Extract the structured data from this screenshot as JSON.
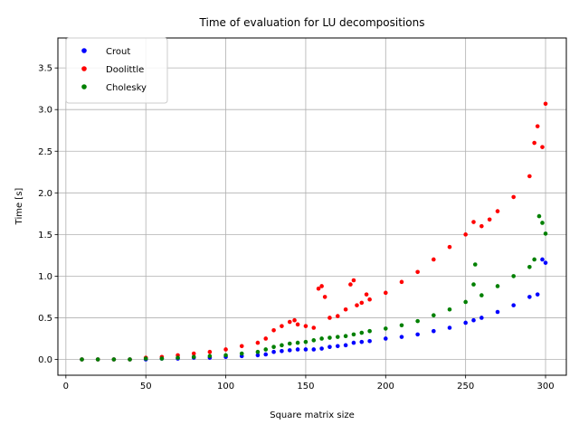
{
  "chart_data": {
    "type": "scatter",
    "title": "Time of evaluation for LU decompositions",
    "xlabel": "Square matrix size",
    "ylabel": "Time [s]",
    "xlim": [
      -5,
      313
    ],
    "ylim": [
      -0.19,
      3.86
    ],
    "xticks": [
      0,
      50,
      100,
      150,
      200,
      250,
      300
    ],
    "yticks": [
      0.0,
      0.5,
      1.0,
      1.5,
      2.0,
      2.5,
      3.0,
      3.5
    ],
    "grid": true,
    "legend_position": "top-left",
    "series": [
      {
        "name": "Crout",
        "color": "#0000ff",
        "x": [
          10,
          20,
          30,
          40,
          50,
          60,
          70,
          80,
          90,
          100,
          110,
          120,
          125,
          130,
          135,
          140,
          145,
          150,
          155,
          160,
          165,
          170,
          175,
          180,
          185,
          190,
          200,
          210,
          220,
          230,
          240,
          250,
          255,
          260,
          270,
          280,
          290,
          295,
          298,
          300
        ],
        "y": [
          0.0,
          0.0,
          0.0,
          0.0,
          0.0,
          0.01,
          0.01,
          0.02,
          0.02,
          0.03,
          0.04,
          0.05,
          0.06,
          0.09,
          0.1,
          0.11,
          0.12,
          0.12,
          0.12,
          0.13,
          0.15,
          0.16,
          0.17,
          0.2,
          0.21,
          0.22,
          0.25,
          0.27,
          0.3,
          0.34,
          0.38,
          0.44,
          0.47,
          0.5,
          0.57,
          0.65,
          0.75,
          0.78,
          1.2,
          1.16
        ]
      },
      {
        "name": "Doolittle",
        "color": "#ff0000",
        "x": [
          10,
          20,
          30,
          40,
          50,
          60,
          70,
          80,
          90,
          100,
          110,
          120,
          125,
          130,
          135,
          140,
          143,
          145,
          150,
          155,
          158,
          160,
          162,
          165,
          170,
          175,
          178,
          180,
          182,
          185,
          188,
          190,
          200,
          210,
          220,
          230,
          240,
          250,
          255,
          260,
          265,
          270,
          280,
          290,
          293,
          295,
          298,
          300
        ],
        "y": [
          0.0,
          0.0,
          0.0,
          0.0,
          0.02,
          0.03,
          0.05,
          0.07,
          0.09,
          0.12,
          0.16,
          0.2,
          0.25,
          0.35,
          0.4,
          0.45,
          0.47,
          0.42,
          0.4,
          0.38,
          0.85,
          0.88,
          0.75,
          0.5,
          0.52,
          0.6,
          0.9,
          0.95,
          0.65,
          0.68,
          0.78,
          0.72,
          0.8,
          0.93,
          1.05,
          1.2,
          1.35,
          1.5,
          1.65,
          1.6,
          1.68,
          1.78,
          1.95,
          2.2,
          2.6,
          2.8,
          2.55,
          3.07
        ]
      },
      {
        "name": "Cholesky",
        "color": "#008000",
        "x": [
          10,
          20,
          30,
          40,
          50,
          60,
          70,
          80,
          90,
          100,
          110,
          120,
          125,
          130,
          135,
          140,
          145,
          150,
          155,
          160,
          165,
          170,
          175,
          180,
          185,
          190,
          200,
          210,
          220,
          230,
          240,
          250,
          255,
          256,
          260,
          270,
          280,
          290,
          293,
          296,
          298,
          300
        ],
        "y": [
          0.0,
          0.0,
          0.0,
          0.0,
          0.01,
          0.01,
          0.02,
          0.03,
          0.04,
          0.05,
          0.07,
          0.09,
          0.12,
          0.15,
          0.17,
          0.19,
          0.2,
          0.21,
          0.23,
          0.25,
          0.26,
          0.27,
          0.28,
          0.3,
          0.32,
          0.34,
          0.37,
          0.41,
          0.46,
          0.53,
          0.6,
          0.69,
          0.9,
          1.14,
          0.77,
          0.88,
          1.0,
          1.11,
          1.2,
          1.72,
          1.64,
          1.51
        ]
      }
    ]
  }
}
